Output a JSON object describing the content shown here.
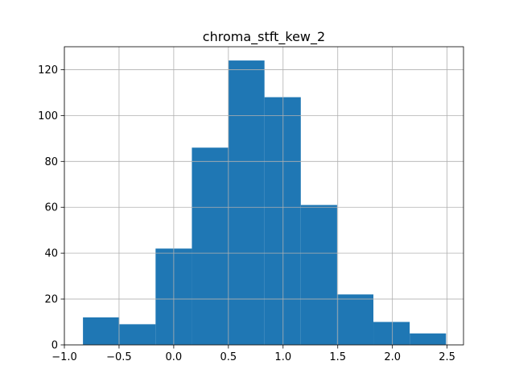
{
  "chart_data": {
    "type": "bar",
    "title": "chroma_stft_kew_2",
    "xlabel": "",
    "ylabel": "",
    "xlim": [
      -1.0,
      2.65
    ],
    "ylim": [
      0,
      130
    ],
    "xticks": [
      -1.0,
      -0.5,
      0.0,
      0.5,
      1.0,
      1.5,
      2.0,
      2.5
    ],
    "xtick_labels": [
      "−1.0",
      "−0.5",
      "0.0",
      "0.5",
      "1.0",
      "1.5",
      "2.0",
      "2.5"
    ],
    "yticks": [
      0,
      20,
      40,
      60,
      80,
      100,
      120
    ],
    "ytick_labels": [
      "0",
      "20",
      "40",
      "60",
      "80",
      "100",
      "120"
    ],
    "bin_edges": [
      -0.83,
      -0.498,
      -0.166,
      0.166,
      0.498,
      0.83,
      1.162,
      1.494,
      1.826,
      2.158,
      2.49
    ],
    "values": [
      12,
      9,
      42,
      86,
      124,
      108,
      61,
      22,
      10,
      5
    ],
    "grid": true,
    "bar_color": "#1f77b4",
    "grid_color": "#b0b0b0"
  }
}
